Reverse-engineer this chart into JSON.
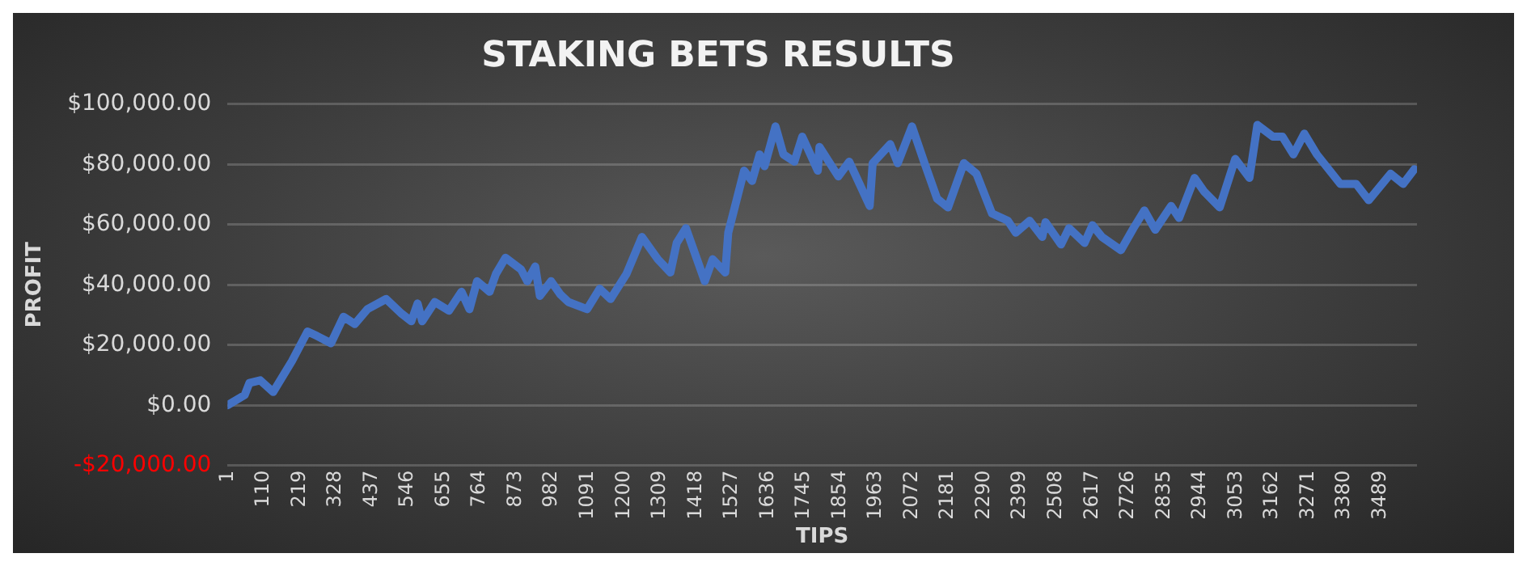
{
  "chart_data": {
    "type": "line",
    "title": "STAKING BETS RESULTS",
    "xlabel": "TIPS",
    "ylabel": "PROFIT",
    "x": [
      1,
      53,
      67,
      100,
      139,
      196,
      243,
      272,
      314,
      352,
      386,
      424,
      481,
      528,
      557,
      576,
      590,
      628,
      671,
      709,
      733,
      756,
      794,
      813,
      842,
      889,
      908,
      932,
      946,
      980,
      1008,
      1032,
      1089,
      1127,
      1160,
      1208,
      1255,
      1303,
      1341,
      1360,
      1388,
      1445,
      1469,
      1507,
      1516,
      1564,
      1588,
      1611,
      1626,
      1659,
      1683,
      1716,
      1740,
      1787,
      1792,
      1849,
      1882,
      1944,
      1953,
      2006,
      2029,
      2072,
      2110,
      2148,
      2181,
      2229,
      2267,
      2314,
      2362,
      2386,
      2428,
      2466,
      2476,
      2523,
      2547,
      2594,
      2618,
      2647,
      2704,
      2742,
      2775,
      2808,
      2856,
      2880,
      2927,
      2955,
      3003,
      3050,
      3093,
      3117,
      3164,
      3193,
      3226,
      3259,
      3297,
      3368,
      3416,
      3454,
      3520,
      3558,
      3592
    ],
    "series": [
      {
        "color": "#4472c4",
        "values": [
          0,
          3400,
          7400,
          8300,
          4400,
          14700,
          24500,
          23000,
          20600,
          29400,
          27000,
          31900,
          35300,
          30400,
          27900,
          33800,
          27900,
          34300,
          31400,
          37700,
          31900,
          41200,
          37700,
          43600,
          49000,
          45100,
          41200,
          46100,
          36300,
          41200,
          36800,
          34300,
          31900,
          38700,
          35300,
          43600,
          55900,
          48500,
          44100,
          53900,
          58800,
          41200,
          48500,
          44100,
          57300,
          77900,
          74500,
          83300,
          79400,
          92600,
          83300,
          80900,
          89200,
          77900,
          85800,
          76000,
          80900,
          66200,
          80400,
          86700,
          80400,
          92600,
          80400,
          68600,
          65700,
          80400,
          76900,
          63700,
          61300,
          57300,
          61300,
          55900,
          60800,
          53400,
          58800,
          53900,
          59800,
          55900,
          51500,
          58800,
          64700,
          58300,
          66200,
          62200,
          75500,
          71100,
          65700,
          81800,
          75500,
          93100,
          89200,
          89200,
          83300,
          90200,
          83300,
          73500,
          73500,
          68100,
          76900,
          73500,
          78400
        ]
      }
    ],
    "xlim": [
      1,
      3600
    ],
    "xticks": [
      1,
      110,
      219,
      328,
      437,
      546,
      655,
      764,
      873,
      982,
      1091,
      1200,
      1309,
      1418,
      1527,
      1636,
      1745,
      1854,
      1963,
      2072,
      2181,
      2290,
      2399,
      2508,
      2617,
      2726,
      2835,
      2944,
      3053,
      3162,
      3271,
      3380,
      3489
    ],
    "ylim": [
      -20000,
      100000
    ],
    "yticks": [
      {
        "value": -20000,
        "label": "-$20,000.00"
      },
      {
        "value": 0,
        "label": "$0.00"
      },
      {
        "value": 20000,
        "label": "$20,000.00"
      },
      {
        "value": 40000,
        "label": "$40,000.00"
      },
      {
        "value": 60000,
        "label": "$60,000.00"
      },
      {
        "value": 80000,
        "label": "$80,000.00"
      },
      {
        "value": 100000,
        "label": "$100,000.00"
      }
    ],
    "grid": "y",
    "legend": false,
    "marker": "none",
    "line_style": "solid"
  }
}
